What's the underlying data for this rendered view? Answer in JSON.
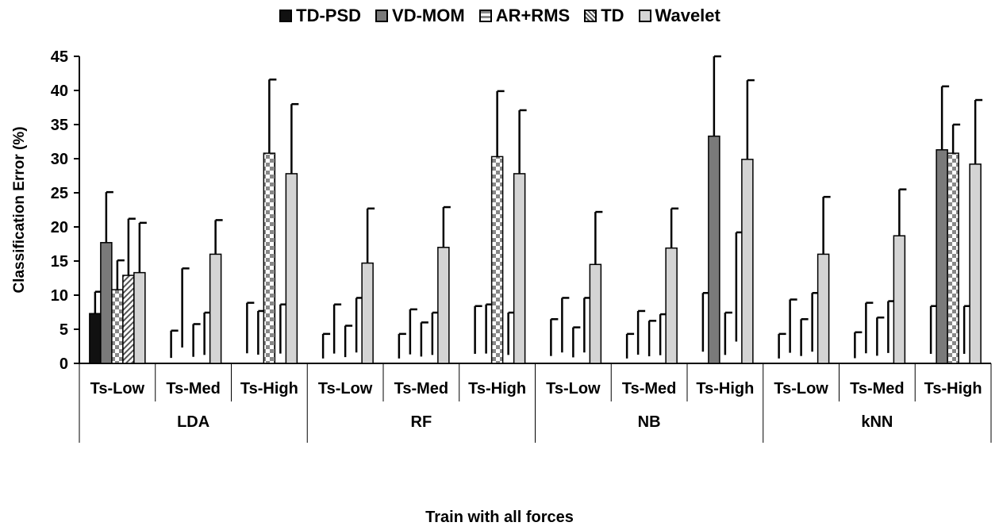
{
  "chart_data": {
    "type": "bar",
    "title": "",
    "xlabel": "Train with all forces",
    "ylabel": "Classification Error (%)",
    "ylim": [
      0,
      45
    ],
    "yticks": [
      0,
      5,
      10,
      15,
      20,
      25,
      30,
      35,
      40,
      45
    ],
    "grid": false,
    "legend_position": "top",
    "groups": [
      "LDA",
      "RF",
      "NB",
      "kNN"
    ],
    "subgroups": [
      "Ts-Low",
      "Ts-Med",
      "Ts-High"
    ],
    "categories": [
      "Ts-Low",
      "Ts-Med",
      "Ts-High",
      "Ts-Low",
      "Ts-Med",
      "Ts-High",
      "Ts-Low",
      "Ts-Med",
      "Ts-High",
      "Ts-Low",
      "Ts-Med",
      "Ts-High"
    ],
    "series": [
      {
        "name": "TD-PSD",
        "color": "#111111",
        "values": [
          7.3,
          0,
          0,
          0,
          0,
          0,
          0,
          0,
          0,
          0,
          0,
          0
        ],
        "errors": [
          3.2,
          2.0,
          3.7,
          1.8,
          1.8,
          3.5,
          2.7,
          1.8,
          4.3,
          1.8,
          1.9,
          3.5
        ]
      },
      {
        "name": "VD-MOM",
        "color": "#7a7a7a",
        "values": [
          17.7,
          0,
          0,
          0,
          0,
          0,
          0,
          0,
          33.3,
          0,
          0,
          31.3
        ],
        "errors": [
          7.4,
          5.8,
          3.2,
          3.6,
          3.3,
          3.6,
          4.0,
          3.2,
          11.7,
          3.9,
          3.7,
          9.3
        ]
      },
      {
        "name": "AR+RMS",
        "color": "#c8c8c8",
        "values": [
          10.8,
          0,
          30.8,
          0,
          0,
          30.3,
          0,
          0,
          0,
          0,
          0,
          30.8
        ],
        "errors": [
          4.3,
          2.4,
          10.8,
          2.3,
          2.5,
          9.6,
          2.2,
          2.6,
          3.1,
          2.7,
          2.8,
          4.2
        ]
      },
      {
        "name": "TD",
        "color": "#dcdcdc",
        "values": [
          12.9,
          0,
          0,
          0,
          0,
          0,
          0,
          0,
          0,
          0,
          0,
          0
        ],
        "errors": [
          8.3,
          3.1,
          3.6,
          4.0,
          3.1,
          3.1,
          4.0,
          3.0,
          8.0,
          4.3,
          3.8,
          3.5
        ]
      },
      {
        "name": "Wavelet",
        "color": "#d4d4d4",
        "values": [
          13.3,
          16.0,
          27.8,
          14.7,
          17.0,
          27.8,
          14.5,
          16.9,
          29.9,
          16.0,
          18.7,
          29.2
        ],
        "errors": [
          7.3,
          5.0,
          10.2,
          8.0,
          5.9,
          9.3,
          7.7,
          5.8,
          11.6,
          8.4,
          6.8,
          9.4
        ]
      }
    ]
  }
}
